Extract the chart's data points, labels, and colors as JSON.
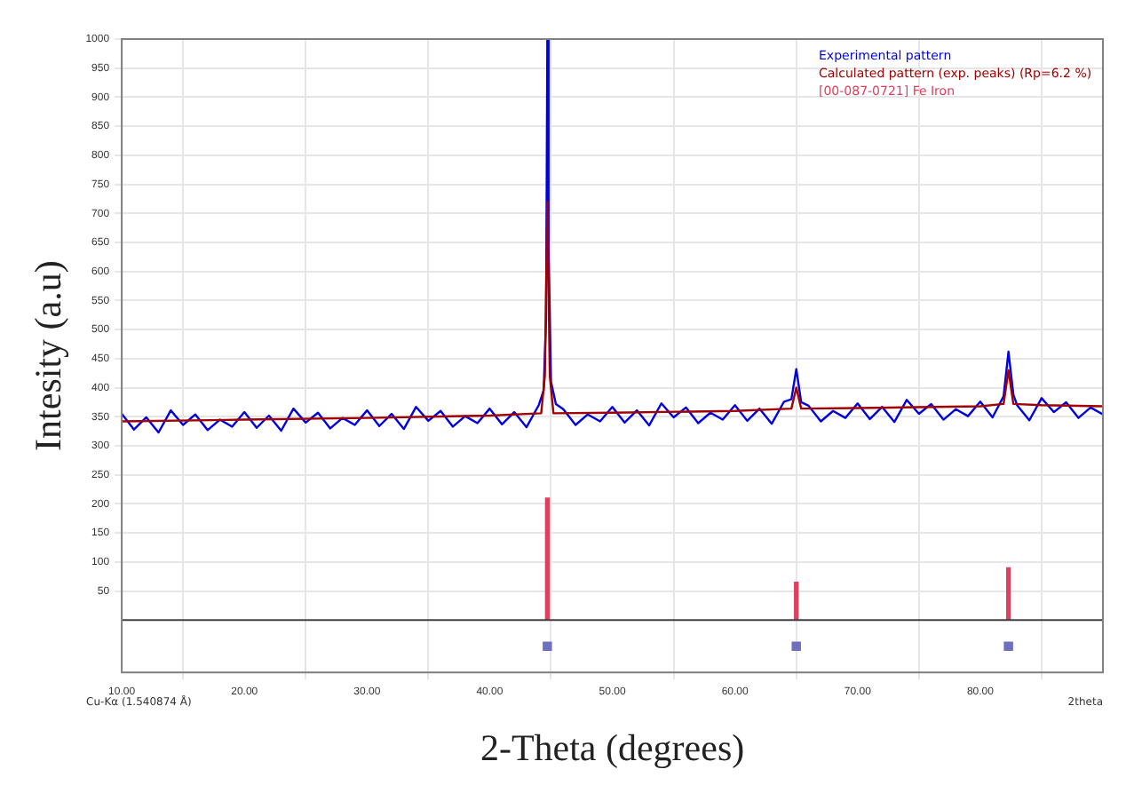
{
  "chart_data": {
    "type": "line",
    "xlabel": "2-Theta (degrees)",
    "ylabel": "Intesity (a.u)",
    "xlim": [
      10,
      90
    ],
    "xticks": [
      {
        "value": 10,
        "label": "10.00"
      },
      {
        "value": 20,
        "label": "20.00"
      },
      {
        "value": 30,
        "label": "30.00"
      },
      {
        "value": 40,
        "label": "40.00"
      },
      {
        "value": 50,
        "label": "50.00"
      },
      {
        "value": 60,
        "label": "60.00"
      },
      {
        "value": 70,
        "label": "70.00"
      },
      {
        "value": 80,
        "label": "80.00"
      }
    ],
    "ylim": [
      -90,
      1000
    ],
    "yticks": [
      50,
      100,
      150,
      200,
      250,
      300,
      350,
      400,
      450,
      500,
      550,
      600,
      650,
      700,
      750,
      800,
      850,
      900,
      950,
      1000
    ],
    "grid": true,
    "legend": "top right",
    "annotations": [
      "Cu-Kα (1.540874 Å)",
      "2theta"
    ],
    "ref_lines": [
      {
        "axis": "y",
        "value": 0,
        "label": null,
        "color": "#404040"
      }
    ],
    "series": [
      {
        "name": "Experimental pattern",
        "color": "#0000e0",
        "x": [
          10,
          11,
          12,
          13,
          14,
          15,
          16,
          17,
          18,
          19,
          20,
          21,
          22,
          23,
          24,
          25,
          26,
          27,
          28,
          29,
          30,
          31,
          32,
          33,
          34,
          35,
          36,
          37,
          38,
          39,
          40,
          41,
          42,
          43,
          44,
          44.4,
          44.6,
          44.7,
          44.8,
          45,
          45.4,
          46,
          47,
          48,
          49,
          50,
          51,
          52,
          53,
          54,
          55,
          56,
          57,
          58,
          59,
          60,
          61,
          62,
          63,
          64,
          64.6,
          65,
          65.4,
          66,
          67,
          68,
          69,
          70,
          71,
          72,
          73,
          74,
          75,
          76,
          77,
          78,
          79,
          80,
          81,
          81.9,
          82.3,
          82.7,
          83,
          84,
          85,
          86,
          87,
          88,
          89,
          90
        ],
        "values": [
          355,
          328,
          349,
          323,
          361,
          336,
          354,
          327,
          345,
          333,
          358,
          331,
          352,
          326,
          364,
          340,
          357,
          330,
          348,
          336,
          361,
          334,
          355,
          329,
          367,
          343,
          360,
          333,
          351,
          339,
          364,
          337,
          358,
          332,
          370,
          395,
          520,
          1000,
          640,
          410,
          372,
          363,
          336,
          354,
          342,
          367,
          340,
          361,
          335,
          373,
          349,
          366,
          339,
          357,
          345,
          370,
          343,
          364,
          338,
          376,
          380,
          432,
          375,
          369,
          342,
          360,
          348,
          373,
          346,
          367,
          341,
          379,
          355,
          372,
          345,
          363,
          351,
          376,
          349,
          385,
          462,
          388,
          370,
          344,
          382,
          358,
          375,
          348,
          366,
          354
        ]
      },
      {
        "name": "Calculated pattern (exp. peaks) (Rp=6.2 %)",
        "type": "line",
        "color": "#a00000",
        "x": [
          10,
          20,
          30,
          40,
          44.2,
          44.5,
          44.7,
          44.9,
          45.2,
          50,
          60,
          64.6,
          65,
          65.4,
          70,
          80,
          81.9,
          82.3,
          82.7,
          85,
          90
        ],
        "values": [
          342,
          345,
          348,
          352,
          356,
          420,
          720,
          420,
          356,
          357,
          360,
          364,
          400,
          364,
          365,
          368,
          372,
          430,
          372,
          370,
          368
        ]
      },
      {
        "name": "[00-087-0721] Fe Iron",
        "type": "bar",
        "color": "#e04060",
        "x": [
          44.7,
          65,
          82.3
        ],
        "values": [
          210,
          65,
          90
        ]
      },
      {
        "type": "scatter",
        "color": "#7070c0",
        "x": [
          44.7,
          65,
          82.3
        ],
        "values": [
          -45,
          -45,
          -45
        ]
      }
    ]
  }
}
